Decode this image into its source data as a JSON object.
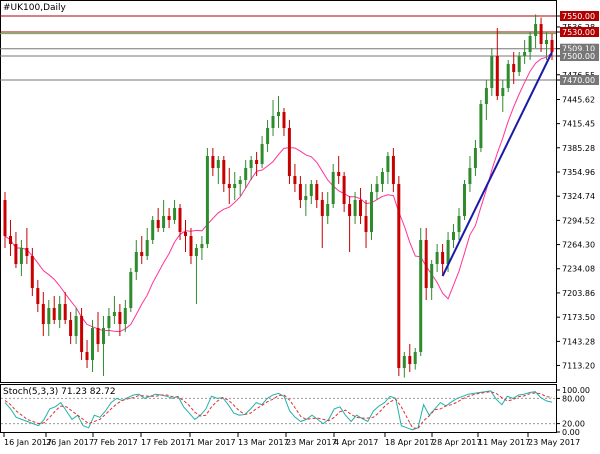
{
  "window": {
    "title": "#UK100,Daily"
  },
  "stochastic": {
    "label": "Stoch(5,3,3) 71.23 82.72"
  },
  "colors": {
    "bull": "#2e8b2e",
    "bear": "#c80000",
    "ma": "#ff3399",
    "trendline": "#1a1aaa",
    "stoch_main": "#20b2aa",
    "stoch_signal": "#e03030",
    "level_resistance": "#b00000",
    "level_support": "#777777",
    "level_green": "#4caf50"
  },
  "chart_data": {
    "type": "candlestick",
    "title": "#UK100,Daily",
    "price_range": [
      7095,
      7560
    ],
    "y_ticks": [
      "7550.00",
      "7536.28",
      "7530.00",
      "7509.10",
      "7500.00",
      "7476.55",
      "7470.00",
      "7445.62",
      "7415.45",
      "7385.28",
      "7354.96",
      "7324.74",
      "7294.52",
      "7264.30",
      "7234.08",
      "7203.86",
      "7173.50",
      "7143.28",
      "7113.20"
    ],
    "x_labels": [
      "16 Jan 2017",
      "26 Jan 2017",
      "7 Feb 2017",
      "17 Feb 2017",
      "1 Mar 2017",
      "13 Mar 2017",
      "23 Mar 2017",
      "4 Apr 2017",
      "18 Apr 2017",
      "28 Apr 2017",
      "11 May 2017",
      "23 May 2017"
    ],
    "levels": [
      {
        "label": "7550.00",
        "value": 7550.0,
        "kind": "resistance"
      },
      {
        "label": "7530.00",
        "value": 7530.0,
        "kind": "resistance"
      },
      {
        "label": "7509.10",
        "value": 7509.1,
        "kind": "support"
      },
      {
        "label": "7500.00",
        "value": 7500.0,
        "kind": "support"
      },
      {
        "label": "7470.00",
        "value": 7470.0,
        "kind": "support"
      }
    ],
    "trendline": {
      "from": [
        "2017-05-02",
        7225
      ],
      "to": [
        "2017-05-31",
        7505
      ]
    },
    "candles": [
      [
        "2017-01-09",
        7320,
        7330,
        7260,
        7275
      ],
      [
        "2017-01-10",
        7275,
        7295,
        7250,
        7265
      ],
      [
        "2017-01-11",
        7265,
        7280,
        7235,
        7240
      ],
      [
        "2017-01-12",
        7240,
        7270,
        7225,
        7260
      ],
      [
        "2017-01-13",
        7260,
        7285,
        7240,
        7250
      ],
      [
        "2017-01-16",
        7250,
        7260,
        7200,
        7210
      ],
      [
        "2017-01-17",
        7210,
        7220,
        7180,
        7190
      ],
      [
        "2017-01-18",
        7190,
        7205,
        7150,
        7165
      ],
      [
        "2017-01-19",
        7165,
        7195,
        7150,
        7185
      ],
      [
        "2017-01-20",
        7185,
        7200,
        7165,
        7170
      ],
      [
        "2017-01-23",
        7170,
        7200,
        7160,
        7190
      ],
      [
        "2017-01-24",
        7190,
        7205,
        7165,
        7170
      ],
      [
        "2017-01-25",
        7170,
        7180,
        7140,
        7150
      ],
      [
        "2017-01-26",
        7150,
        7185,
        7140,
        7175
      ],
      [
        "2017-01-27",
        7175,
        7185,
        7120,
        7130
      ],
      [
        "2017-01-30",
        7130,
        7145,
        7110,
        7120
      ],
      [
        "2017-01-31",
        7120,
        7170,
        7105,
        7160
      ],
      [
        "2017-02-01",
        7160,
        7180,
        7130,
        7140
      ],
      [
        "2017-02-02",
        7140,
        7175,
        7100,
        7160
      ],
      [
        "2017-02-03",
        7160,
        7185,
        7150,
        7175
      ],
      [
        "2017-02-06",
        7175,
        7200,
        7165,
        7180
      ],
      [
        "2017-02-07",
        7180,
        7190,
        7150,
        7165
      ],
      [
        "2017-02-08",
        7165,
        7195,
        7155,
        7185
      ],
      [
        "2017-02-09",
        7185,
        7235,
        7180,
        7230
      ],
      [
        "2017-02-10",
        7230,
        7270,
        7220,
        7255
      ],
      [
        "2017-02-13",
        7255,
        7275,
        7240,
        7250
      ],
      [
        "2017-02-14",
        7250,
        7285,
        7245,
        7270
      ],
      [
        "2017-02-15",
        7270,
        7300,
        7265,
        7295
      ],
      [
        "2017-02-16",
        7295,
        7310,
        7280,
        7285
      ],
      [
        "2017-02-17",
        7285,
        7320,
        7280,
        7300
      ],
      [
        "2017-02-20",
        7300,
        7310,
        7285,
        7295
      ],
      [
        "2017-02-21",
        7295,
        7320,
        7290,
        7310
      ],
      [
        "2017-02-22",
        7310,
        7315,
        7270,
        7280
      ],
      [
        "2017-02-23",
        7280,
        7295,
        7255,
        7275
      ],
      [
        "2017-02-24",
        7275,
        7285,
        7240,
        7250
      ],
      [
        "2017-02-27",
        7250,
        7265,
        7190,
        7260
      ],
      [
        "2017-02-28",
        7260,
        7275,
        7245,
        7265
      ],
      [
        "2017-03-01",
        7265,
        7385,
        7260,
        7375
      ],
      [
        "2017-03-02",
        7375,
        7385,
        7350,
        7360
      ],
      [
        "2017-03-03",
        7360,
        7375,
        7340,
        7370
      ],
      [
        "2017-03-06",
        7370,
        7375,
        7330,
        7340
      ],
      [
        "2017-03-07",
        7340,
        7360,
        7315,
        7335
      ],
      [
        "2017-03-08",
        7335,
        7355,
        7320,
        7340
      ],
      [
        "2017-03-09",
        7340,
        7350,
        7325,
        7345
      ],
      [
        "2017-03-10",
        7345,
        7370,
        7335,
        7360
      ],
      [
        "2017-03-13",
        7360,
        7375,
        7345,
        7370
      ],
      [
        "2017-03-14",
        7370,
        7380,
        7350,
        7365
      ],
      [
        "2017-03-15",
        7365,
        7400,
        7360,
        7390
      ],
      [
        "2017-03-16",
        7390,
        7420,
        7380,
        7410
      ],
      [
        "2017-03-17",
        7410,
        7445,
        7400,
        7425
      ],
      [
        "2017-03-20",
        7425,
        7450,
        7410,
        7430
      ],
      [
        "2017-03-21",
        7430,
        7435,
        7400,
        7410
      ],
      [
        "2017-03-22",
        7410,
        7420,
        7340,
        7350
      ],
      [
        "2017-03-23",
        7350,
        7365,
        7330,
        7340
      ],
      [
        "2017-03-24",
        7340,
        7350,
        7310,
        7320
      ],
      [
        "2017-03-27",
        7320,
        7340,
        7300,
        7325
      ],
      [
        "2017-03-28",
        7325,
        7345,
        7315,
        7340
      ],
      [
        "2017-03-29",
        7340,
        7345,
        7310,
        7320
      ],
      [
        "2017-03-30",
        7320,
        7330,
        7260,
        7300
      ],
      [
        "2017-03-31",
        7300,
        7330,
        7290,
        7315
      ],
      [
        "2017-04-03",
        7315,
        7365,
        7310,
        7355
      ],
      [
        "2017-04-04",
        7355,
        7375,
        7340,
        7350
      ],
      [
        "2017-04-05",
        7350,
        7355,
        7305,
        7315
      ],
      [
        "2017-04-06",
        7315,
        7325,
        7255,
        7300
      ],
      [
        "2017-04-07",
        7300,
        7330,
        7290,
        7320
      ],
      [
        "2017-04-10",
        7320,
        7335,
        7290,
        7300
      ],
      [
        "2017-04-11",
        7300,
        7320,
        7260,
        7280
      ],
      [
        "2017-04-12",
        7280,
        7340,
        7270,
        7330
      ],
      [
        "2017-04-13",
        7330,
        7350,
        7320,
        7340
      ],
      [
        "2017-04-17",
        7340,
        7360,
        7330,
        7355
      ],
      [
        "2017-04-18",
        7355,
        7380,
        7340,
        7375
      ],
      [
        "2017-04-19",
        7375,
        7385,
        7330,
        7340
      ],
      [
        "2017-04-20",
        7340,
        7350,
        7100,
        7110
      ],
      [
        "2017-04-21",
        7110,
        7130,
        7098,
        7125
      ],
      [
        "2017-04-24",
        7125,
        7140,
        7105,
        7115
      ],
      [
        "2017-04-25",
        7115,
        7135,
        7108,
        7130
      ],
      [
        "2017-04-26",
        7130,
        7285,
        7125,
        7270
      ],
      [
        "2017-04-27",
        7270,
        7285,
        7195,
        7210
      ],
      [
        "2017-04-28",
        7210,
        7245,
        7195,
        7240
      ],
      [
        "2017-05-01",
        7240,
        7265,
        7230,
        7255
      ],
      [
        "2017-05-02",
        7255,
        7265,
        7225,
        7240
      ],
      [
        "2017-05-03",
        7240,
        7280,
        7230,
        7270
      ],
      [
        "2017-05-04",
        7270,
        7290,
        7260,
        7280
      ],
      [
        "2017-05-05",
        7280,
        7310,
        7270,
        7300
      ],
      [
        "2017-05-08",
        7300,
        7345,
        7295,
        7340
      ],
      [
        "2017-05-09",
        7340,
        7375,
        7330,
        7360
      ],
      [
        "2017-05-10",
        7360,
        7395,
        7350,
        7385
      ],
      [
        "2017-05-11",
        7385,
        7445,
        7380,
        7440
      ],
      [
        "2017-05-12",
        7440,
        7470,
        7420,
        7460
      ],
      [
        "2017-05-15",
        7460,
        7510,
        7450,
        7500
      ],
      [
        "2017-05-16",
        7500,
        7535,
        7445,
        7450
      ],
      [
        "2017-05-17",
        7450,
        7470,
        7430,
        7460
      ],
      [
        "2017-05-18",
        7460,
        7495,
        7455,
        7490
      ],
      [
        "2017-05-19",
        7490,
        7505,
        7465,
        7480
      ],
      [
        "2017-05-22",
        7480,
        7505,
        7475,
        7500
      ],
      [
        "2017-05-23",
        7500,
        7520,
        7490,
        7505
      ],
      [
        "2017-05-24",
        7505,
        7530,
        7495,
        7525
      ],
      [
        "2017-05-25",
        7525,
        7552,
        7510,
        7540
      ],
      [
        "2017-05-26",
        7540,
        7548,
        7505,
        7515
      ],
      [
        "2017-05-30",
        7515,
        7530,
        7495,
        7520
      ],
      [
        "2017-05-31",
        7520,
        7528,
        7495,
        7505
      ]
    ],
    "stochastic": {
      "name": "Stoch(5,3,3)",
      "main": 71.23,
      "signal": 82.72,
      "range": [
        0,
        100
      ],
      "ticks": [
        "100.00",
        "80.00",
        "20.00",
        "0.00"
      ],
      "main_series": [
        70,
        55,
        35,
        30,
        25,
        20,
        15,
        30,
        55,
        60,
        70,
        50,
        30,
        40,
        15,
        10,
        40,
        35,
        50,
        70,
        80,
        75,
        82,
        88,
        90,
        80,
        85,
        90,
        88,
        85,
        80,
        85,
        60,
        45,
        30,
        40,
        55,
        85,
        80,
        82,
        65,
        45,
        40,
        42,
        55,
        70,
        65,
        80,
        88,
        92,
        85,
        50,
        35,
        25,
        30,
        40,
        30,
        20,
        30,
        55,
        60,
        40,
        25,
        40,
        32,
        25,
        50,
        62,
        70,
        85,
        80,
        15,
        10,
        5,
        10,
        65,
        40,
        55,
        70,
        62,
        72,
        80,
        85,
        90,
        92,
        94,
        96,
        98,
        78,
        65,
        85,
        80,
        88,
        90,
        94,
        96,
        82,
        74,
        71.23
      ],
      "signal_series": [
        75,
        65,
        50,
        40,
        30,
        25,
        20,
        22,
        35,
        50,
        62,
        60,
        50,
        40,
        30,
        20,
        25,
        30,
        42,
        55,
        67,
        75,
        79,
        82,
        87,
        86,
        85,
        85,
        88,
        88,
        84,
        83,
        75,
        63,
        47,
        38,
        40,
        60,
        73,
        82,
        76,
        64,
        50,
        42,
        45,
        55,
        63,
        72,
        78,
        87,
        88,
        76,
        57,
        37,
        30,
        32,
        33,
        30,
        27,
        35,
        48,
        52,
        42,
        35,
        33,
        33,
        35,
        46,
        61,
        72,
        78,
        60,
        35,
        10,
        8,
        27,
        38,
        53,
        55,
        62,
        65,
        71,
        79,
        85,
        89,
        92,
        94,
        96,
        92,
        82,
        74,
        77,
        84,
        86,
        91,
        93,
        91,
        84,
        82.72
      ]
    },
    "moving_average": {
      "period": 10
    }
  }
}
